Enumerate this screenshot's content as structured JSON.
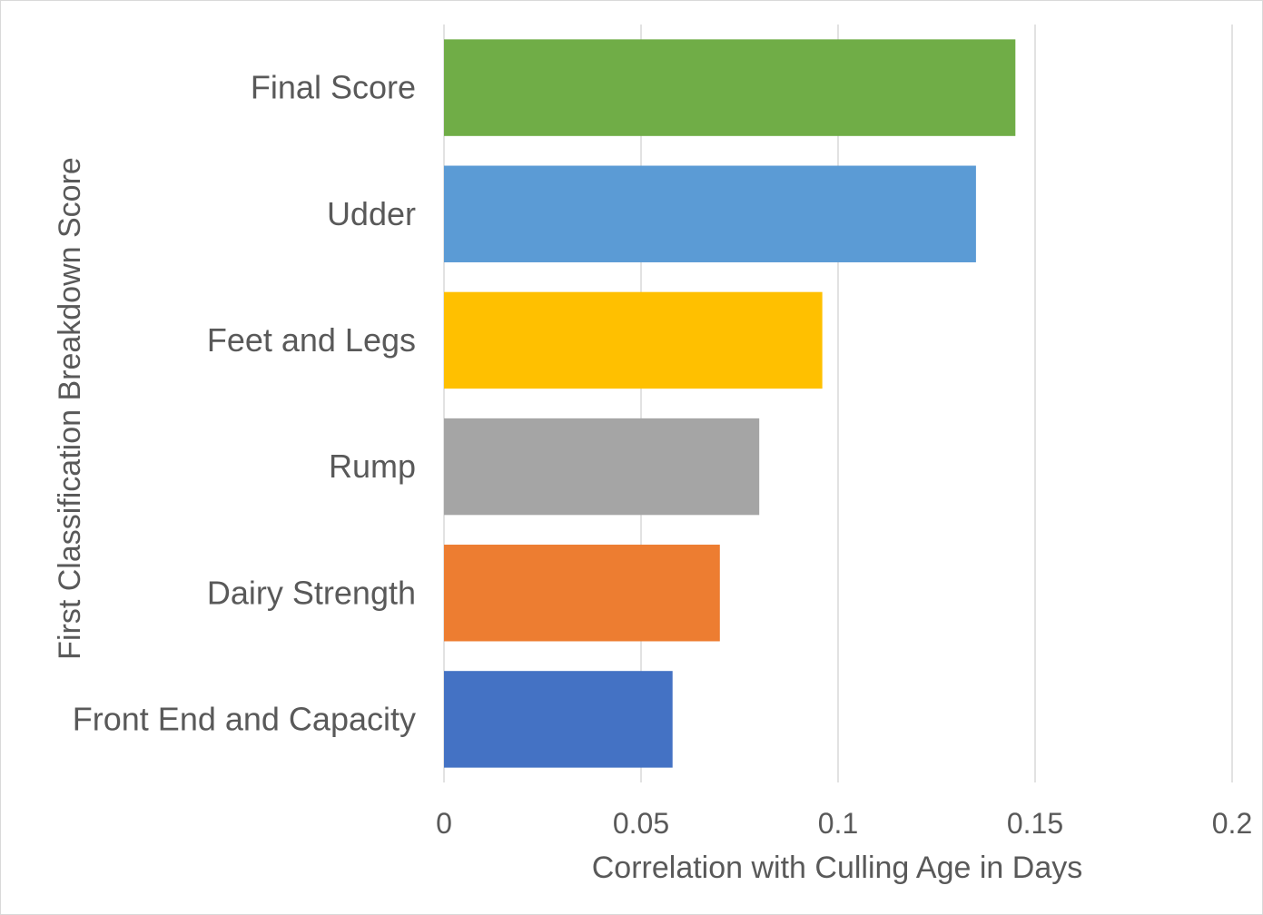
{
  "chart_data": {
    "type": "bar",
    "orientation": "horizontal",
    "categories": [
      "Final Score",
      "Udder",
      "Feet and Legs",
      "Rump",
      "Dairy Strength",
      "Front End and Capacity"
    ],
    "values": [
      0.145,
      0.135,
      0.096,
      0.08,
      0.07,
      0.058
    ],
    "colors": [
      "#70AD47",
      "#5B9BD5",
      "#FFC000",
      "#A5A5A5",
      "#ED7D31",
      "#4472C4"
    ],
    "title": "",
    "xlabel": "Correlation with Culling Age in Days",
    "ylabel": "First Classification Breakdown Score",
    "xlim": [
      0,
      0.2
    ],
    "xticks": [
      0,
      0.05,
      0.1,
      0.15,
      0.2
    ],
    "xtick_labels": [
      "0",
      "0.05",
      "0.1",
      "0.15",
      "0.2"
    ],
    "grid": "vertical",
    "legend": "none"
  }
}
